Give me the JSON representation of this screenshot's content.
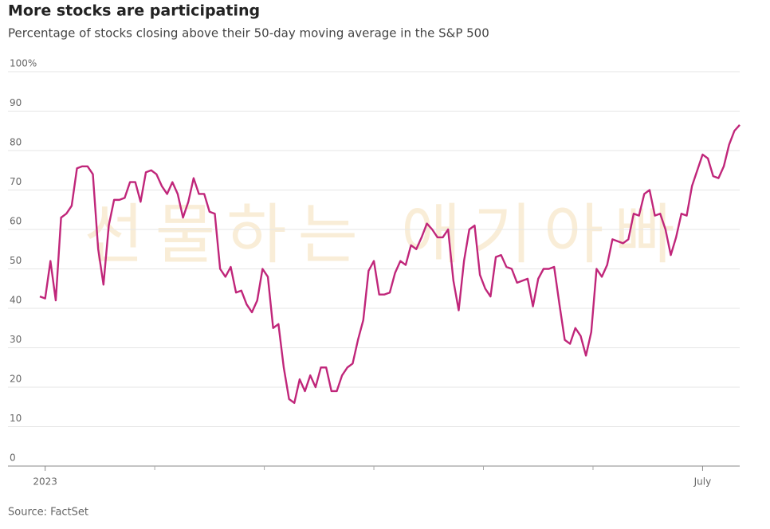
{
  "chart_data": {
    "type": "line",
    "title": "More stocks are participating",
    "subtitle": "Percentage of stocks closing above their 50-day moving average in the S&P 500",
    "source": "Source: FactSet",
    "watermark": "선물하는 애기아빠",
    "categories": [
      null,
      "2023",
      null,
      null,
      null,
      null,
      null,
      null,
      null,
      null,
      null,
      null,
      null,
      null,
      null,
      null,
      null,
      null,
      null,
      null,
      null,
      null,
      null,
      null,
      null,
      null,
      null,
      null,
      null,
      null,
      null,
      null,
      null,
      null,
      null,
      null,
      null,
      null,
      null,
      null,
      null,
      null,
      null,
      null,
      null,
      null,
      null,
      null,
      null,
      null,
      null,
      null,
      null,
      null,
      null,
      null,
      null,
      null,
      null,
      null,
      null,
      null,
      null,
      null,
      null,
      null,
      null,
      null,
      null,
      null,
      null,
      null,
      null,
      null,
      null,
      null,
      null,
      null,
      null,
      null,
      null,
      null,
      null,
      null,
      null,
      null,
      null,
      null,
      null,
      null,
      null,
      null,
      null,
      null,
      null,
      null,
      null,
      null,
      null,
      null,
      null,
      null,
      null,
      null,
      null,
      null,
      null,
      null,
      null,
      null,
      null,
      null,
      null,
      null,
      null,
      null,
      null,
      null,
      null,
      null,
      null,
      null,
      null,
      null,
      null,
      "July",
      null,
      null,
      null,
      null,
      null,
      null,
      null
    ],
    "series": [
      {
        "name": "Stocks above 50-day moving average",
        "color": "#c0267a",
        "values": [
          43,
          42.5,
          52,
          42,
          63,
          64,
          66,
          75.5,
          76,
          76,
          74,
          55,
          46,
          61,
          67.5,
          67.5,
          68,
          72,
          72,
          67,
          74.5,
          75,
          74,
          71,
          69,
          72,
          69,
          63,
          67,
          73,
          69,
          69,
          64.5,
          64,
          50,
          48,
          50.5,
          44,
          44.5,
          41,
          39,
          42,
          50,
          48,
          35,
          36,
          25,
          17,
          16,
          22,
          19,
          23,
          20,
          25,
          25,
          19,
          19,
          23,
          25,
          26,
          32,
          37,
          49.5,
          52,
          43.5,
          43.5,
          44,
          49,
          52,
          51,
          56,
          55,
          58,
          61.5,
          60,
          58,
          58,
          60,
          47,
          39.5,
          52,
          60,
          61,
          48.5,
          45,
          43,
          53,
          53.5,
          50.5,
          50,
          46.5,
          47,
          47.5,
          40.5,
          47.5,
          50,
          50,
          50.5,
          41,
          32,
          31,
          35,
          33,
          28,
          34,
          50,
          48,
          51,
          57.5,
          57,
          56.5,
          57.5,
          64,
          63.5,
          69,
          70,
          63.5,
          64,
          60,
          53.5,
          58,
          64,
          63.5,
          71,
          75,
          79,
          78,
          73.5,
          73,
          76,
          81.5,
          85,
          86.5
        ]
      }
    ],
    "ylim": [
      0,
      100
    ],
    "yticks": [
      0,
      10,
      20,
      30,
      40,
      50,
      60,
      70,
      80,
      90,
      {
        "value": 100,
        "label": "100%"
      }
    ],
    "grid": true
  }
}
